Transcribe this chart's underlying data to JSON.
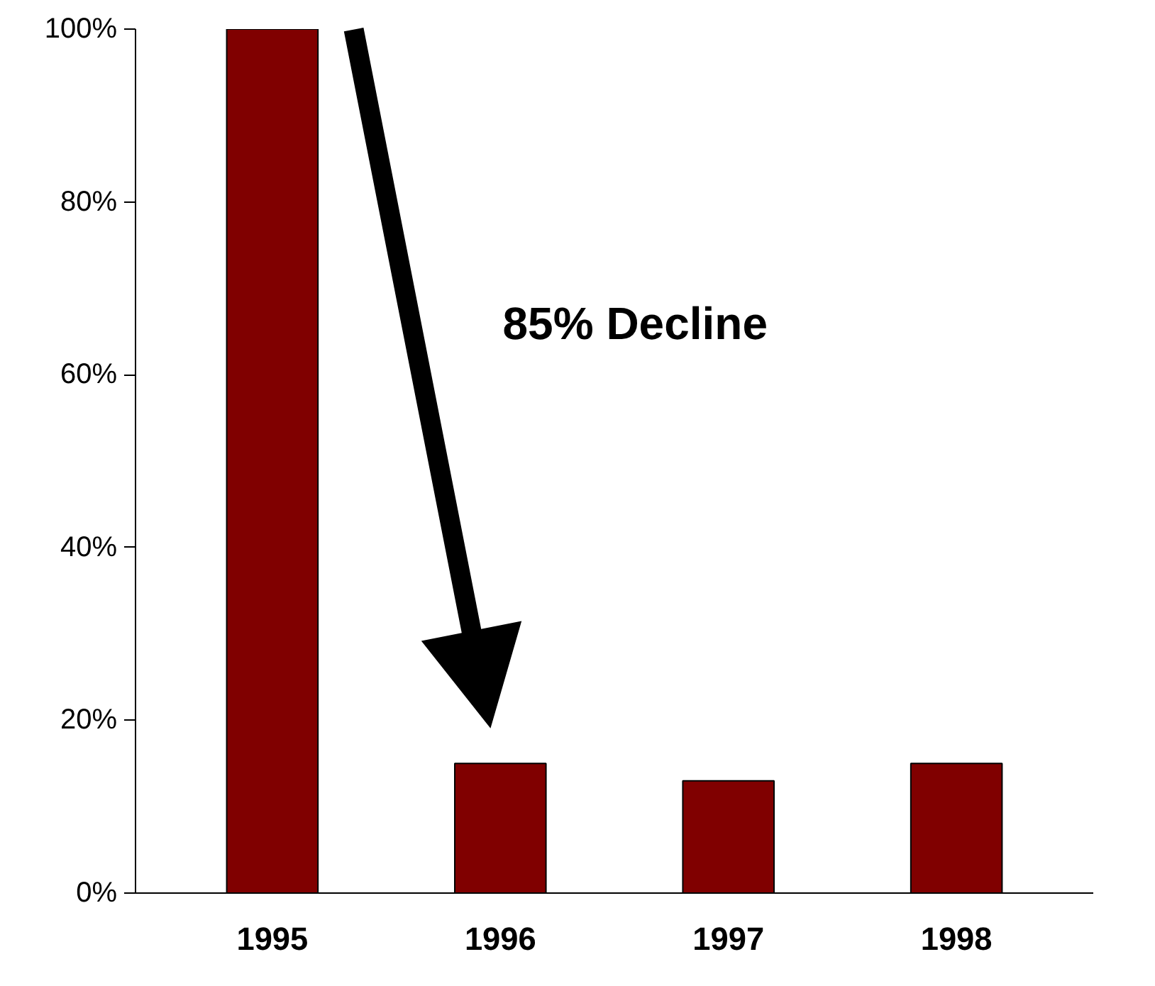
{
  "chart_data": {
    "type": "bar",
    "categories": [
      "1995",
      "1996",
      "1997",
      "1998"
    ],
    "values": [
      100,
      15,
      13,
      15
    ],
    "color": "#800000",
    "ylim": [
      0,
      100
    ],
    "yticks": [
      {
        "value": 0,
        "label": "0%"
      },
      {
        "value": 20,
        "label": "20%"
      },
      {
        "value": 40,
        "label": "40%"
      },
      {
        "value": 60,
        "label": "60%"
      },
      {
        "value": 80,
        "label": "80%"
      },
      {
        "value": 100,
        "label": "100%"
      }
    ],
    "grid": false,
    "annotations": [
      "85% Decline"
    ]
  }
}
